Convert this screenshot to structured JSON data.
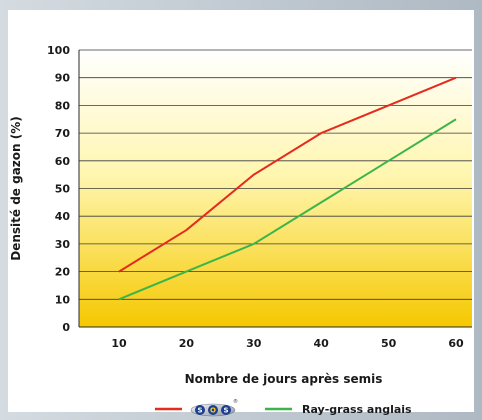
{
  "chart_data": {
    "type": "line",
    "xlabel": "Nombre de jours après semis",
    "ylabel": "Densité de gazon (%)",
    "x": [
      10,
      20,
      30,
      40,
      50,
      60
    ],
    "ylim": [
      0,
      100
    ],
    "yticks": [
      "0",
      "10",
      "20",
      "30",
      "40",
      "50",
      "60",
      "70",
      "80",
      "90",
      "100"
    ],
    "xticks": [
      "10",
      "20",
      "30",
      "40",
      "50",
      "60"
    ],
    "grid": true,
    "legend_position": "bottom",
    "series": [
      {
        "name": "SOS",
        "color": "#e52a1e",
        "values": [
          20,
          35,
          55,
          70,
          80,
          90
        ]
      },
      {
        "name": "Ray-grass anglais",
        "color": "#3bb54a",
        "values": [
          10,
          20,
          30,
          45,
          60,
          75
        ]
      }
    ]
  },
  "colors": {
    "frame": "#b9c4cd",
    "gradient_top": "#ffffff",
    "gradient_bottom": "#f5c800"
  },
  "icons": {
    "sos_logo": "sos-logo-icon"
  }
}
